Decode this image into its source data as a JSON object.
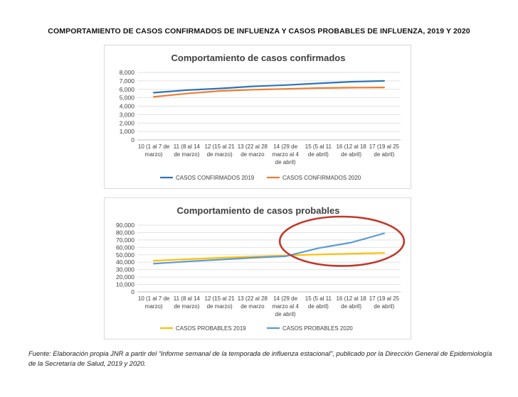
{
  "page": {
    "title": "COMPORTAMIENTO DE CASOS CONFIRMADOS DE INFLUENZA Y CASOS PROBABLES DE INFLUENZA, 2019 Y 2020",
    "source": "Fuente: Elaboración propia JNR a partir del “Informe semanal de la temporada de influenza estacional”, publicado por la Dirección General de Epidemiología de la Secretaría de Salud, 2019 y 2020."
  },
  "chart_data": [
    {
      "type": "line",
      "title": "Comportamiento de casos confirmados",
      "xlabel": "",
      "ylabel": "",
      "categories": [
        [
          "10 (1 al 7 de",
          "marzo)"
        ],
        [
          "11 (8 al 14",
          "de marzo)"
        ],
        [
          "12 (15 al 21",
          "de marzo)"
        ],
        [
          "13 (22 al 28",
          "de marzo"
        ],
        [
          "14 (29 de",
          "marzo al 4",
          "de abril)"
        ],
        [
          "15 (5 al 11",
          "de abril)"
        ],
        [
          "16 (12 al 18",
          "de abril)"
        ],
        [
          "17 (19 al 25",
          "de abril)"
        ]
      ],
      "ylim": [
        0,
        8000
      ],
      "yticks": [
        0,
        1000,
        2000,
        3000,
        4000,
        5000,
        6000,
        7000,
        8000
      ],
      "ytick_labels": [
        "0",
        "1,000",
        "2,000",
        "3,000",
        "4,000",
        "5,000",
        "6,000",
        "7,000",
        "8,000"
      ],
      "grid": true,
      "legend_position": "bottom",
      "series": [
        {
          "name": "CASOS CONFIRMADOS 2019",
          "color": "#2e75b6",
          "values": [
            5600,
            5900,
            6100,
            6350,
            6500,
            6700,
            6900,
            7000
          ]
        },
        {
          "name": "CASOS CONFIRMADOS 2020",
          "color": "#ed7d31",
          "values": [
            5100,
            5500,
            5800,
            5950,
            6050,
            6150,
            6200,
            6220
          ]
        }
      ]
    },
    {
      "type": "line",
      "title": "Comportamiento de casos probables",
      "xlabel": "",
      "ylabel": "",
      "categories": [
        [
          "10 (1 al 7 de",
          "marzo)"
        ],
        [
          "11 (8 al 14",
          "de marzo)"
        ],
        [
          "12 (15 al 21",
          "de marzo)"
        ],
        [
          "13 (22 al 28",
          "de marzo"
        ],
        [
          "14 (29 de",
          "marzo al 4",
          "de abril)"
        ],
        [
          "15 (5 al 11",
          "de abril)"
        ],
        [
          "16 (12 al 18",
          "de abril)"
        ],
        [
          "17 (19 al 25",
          "de abril)"
        ]
      ],
      "ylim": [
        0,
        90000
      ],
      "yticks": [
        0,
        10000,
        20000,
        30000,
        40000,
        50000,
        60000,
        70000,
        80000,
        90000
      ],
      "ytick_labels": [
        "0",
        "10,000",
        "20,000",
        "30,000",
        "40,000",
        "50,000",
        "60,000",
        "70,000",
        "80,000",
        "90,000"
      ],
      "grid": true,
      "legend_position": "bottom",
      "series": [
        {
          "name": "CASOS PROBABLES 2019",
          "color": "#ffc000",
          "values": [
            42000,
            44000,
            46000,
            47500,
            49000,
            50500,
            51500,
            52500
          ]
        },
        {
          "name": "CASOS PROBABLES 2020",
          "color": "#5b9bd5",
          "values": [
            38000,
            41000,
            43500,
            46000,
            48000,
            59000,
            66500,
            79000
          ]
        }
      ],
      "annotation": {
        "shape": "ellipse",
        "color": "#c0392b",
        "highlight_from_category_index": 4,
        "highlight_to_category_index": 7
      }
    }
  ]
}
